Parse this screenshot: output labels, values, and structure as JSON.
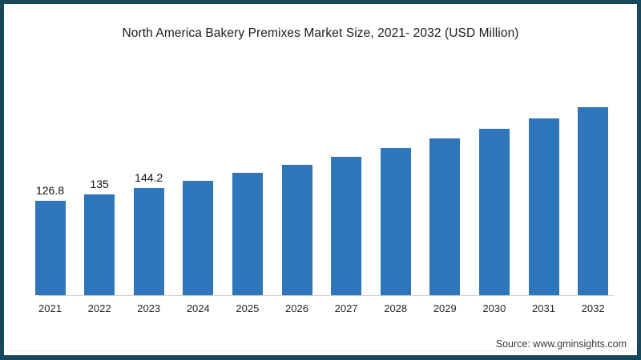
{
  "title": "North America Bakery Premixes Market Size, 2021- 2032 (USD Million)",
  "source": "Source: www.gminsights.com",
  "colors": {
    "frame_border": "#16485C",
    "bar": "#2E76B9",
    "axis_line": "#CFCFCF",
    "background": "#FFFFFF"
  },
  "chart_data": {
    "type": "bar",
    "title": "North America Bakery Premixes Market Size, 2021- 2032 (USD Million)",
    "xlabel": "",
    "ylabel": "USD Million",
    "categories": [
      "2021",
      "2022",
      "2023",
      "2024",
      "2025",
      "2026",
      "2027",
      "2028",
      "2029",
      "2030",
      "2031",
      "2032"
    ],
    "values": [
      126.8,
      135,
      144.2,
      154,
      164,
      175,
      186,
      198,
      211,
      224,
      238,
      253
    ],
    "data_labels": [
      "126.8",
      "135",
      "144.2",
      null,
      null,
      null,
      null,
      null,
      null,
      null,
      null,
      null
    ],
    "ylim": [
      0,
      272
    ],
    "grid": false,
    "legend": "none",
    "note": "values for 2024-2032 estimated from bar heights; only 2021-2023 carry printed labels"
  }
}
